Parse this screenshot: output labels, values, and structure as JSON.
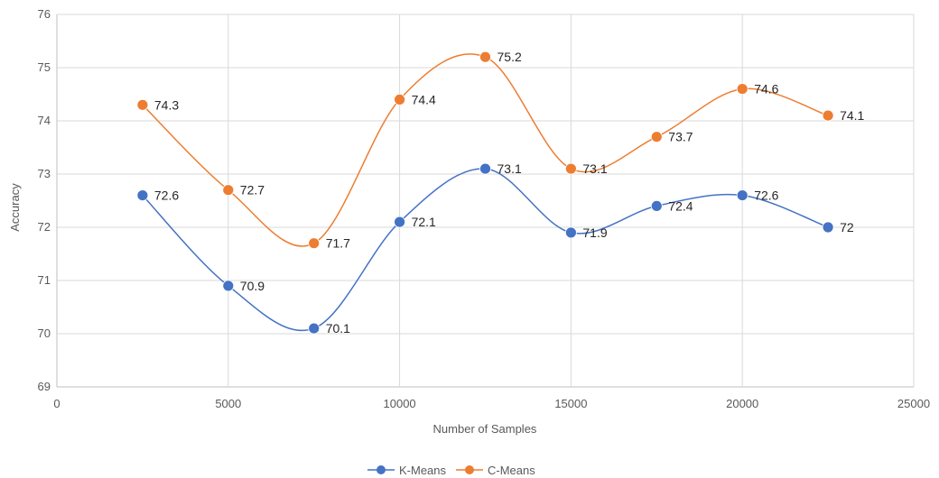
{
  "chart_data": {
    "type": "line",
    "xlabel": "Number of Samples",
    "ylabel": "Accuracy",
    "xlim": [
      0,
      25000
    ],
    "ylim": [
      69,
      76
    ],
    "x_ticks": [
      "0",
      "5000",
      "10000",
      "15000",
      "20000",
      "25000"
    ],
    "y_ticks": [
      "69",
      "70",
      "71",
      "72",
      "73",
      "74",
      "75",
      "76"
    ],
    "grid": true,
    "legend": "bottom",
    "smooth": true,
    "x": [
      2500,
      5000,
      7500,
      10000,
      12500,
      15000,
      17500,
      20000,
      22500
    ],
    "series": [
      {
        "name": "K-Means",
        "color": "#4472C4",
        "values": [
          72.6,
          70.9,
          70.1,
          72.1,
          73.1,
          71.9,
          72.4,
          72.6,
          72
        ],
        "labels": [
          "72.6",
          "70.9",
          "70.1",
          "72.1",
          "73.1",
          "71.9",
          "72.4",
          "72.6",
          "72"
        ]
      },
      {
        "name": "C-Means",
        "color": "#ED7D31",
        "values": [
          74.3,
          72.7,
          71.7,
          74.4,
          75.2,
          73.1,
          73.7,
          74.6,
          74.1
        ],
        "labels": [
          "74.3",
          "72.7",
          "71.7",
          "74.4",
          "75.2",
          "73.1",
          "73.7",
          "74.6",
          "74.1"
        ]
      }
    ]
  }
}
